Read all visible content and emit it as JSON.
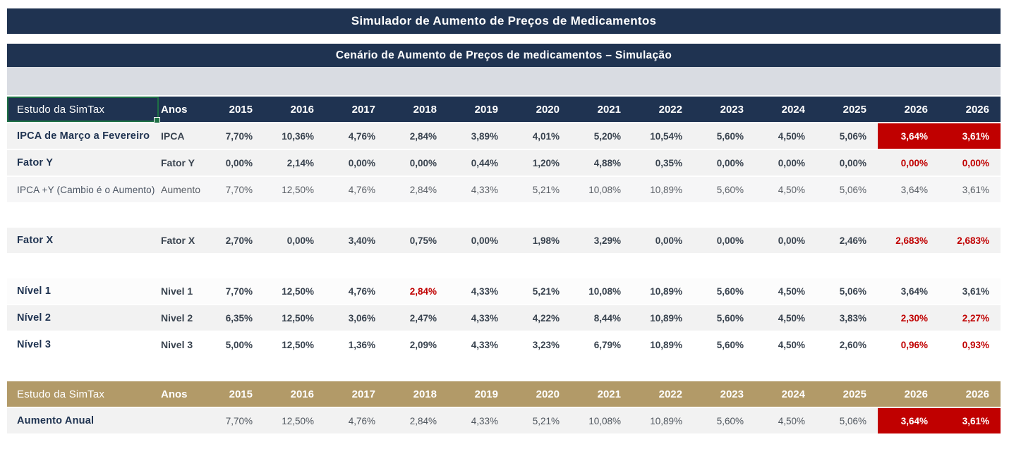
{
  "titles": {
    "main": "Simulador de Aumento de Preços de Medicamentos",
    "subtitle": "Cenário de Aumento de Preços de medicamentos – Simulação"
  },
  "table": {
    "corner_label": "Estudo da SimTax",
    "anos_label": "Anos",
    "years": [
      "2015",
      "2016",
      "2017",
      "2018",
      "2019",
      "2020",
      "2021",
      "2022",
      "2023",
      "2024",
      "2025",
      "2026",
      "2026"
    ]
  },
  "rows": {
    "ipca": {
      "id": "ipca",
      "label": "IPCA de Março a Fevereiro",
      "key": "IPCA",
      "values": [
        "7,70%",
        "10,36%",
        "4,76%",
        "2,84%",
        "3,89%",
        "4,01%",
        "5,20%",
        "10,54%",
        "5,60%",
        "4,50%",
        "5,06%",
        "3,64%",
        "3,61%"
      ],
      "flags": {
        "11": "hl-bg",
        "12": "hl-bg"
      }
    },
    "fator_y": {
      "id": "fator-y",
      "label": "Fator Y",
      "key": "Fator Y",
      "values": [
        "0,00%",
        "2,14%",
        "0,00%",
        "0,00%",
        "0,44%",
        "1,20%",
        "4,88%",
        "0,35%",
        "0,00%",
        "0,00%",
        "0,00%",
        "0,00%",
        "0,00%"
      ],
      "flags": {
        "11": "hl-txt",
        "12": "hl-txt"
      }
    },
    "aumento": {
      "id": "aumento",
      "label": "IPCA +Y (Cambio é o Aumento)",
      "key": "Aumento",
      "values": [
        "7,70%",
        "12,50%",
        "4,76%",
        "2,84%",
        "4,33%",
        "5,21%",
        "10,08%",
        "10,89%",
        "5,60%",
        "4,50%",
        "5,06%",
        "3,64%",
        "3,61%"
      ],
      "flags": {}
    },
    "fator_x": {
      "id": "fator-x",
      "label": "Fator X",
      "key": "Fator X",
      "values": [
        "2,70%",
        "0,00%",
        "3,40%",
        "0,75%",
        "0,00%",
        "1,98%",
        "3,29%",
        "0,00%",
        "0,00%",
        "0,00%",
        "2,46%",
        "2,683%",
        "2,683%"
      ],
      "flags": {
        "11": "hl-txt",
        "12": "hl-txt"
      }
    },
    "nivel1": {
      "id": "nivel-1",
      "label": "Nível 1",
      "key": "Nivel 1",
      "values": [
        "7,70%",
        "12,50%",
        "4,76%",
        "2,84%",
        "4,33%",
        "5,21%",
        "10,08%",
        "10,89%",
        "5,60%",
        "4,50%",
        "5,06%",
        "3,64%",
        "3,61%"
      ],
      "flags": {
        "3": "hl-txt"
      }
    },
    "nivel2": {
      "id": "nivel-2",
      "label": "Nível 2",
      "key": "Nivel 2",
      "values": [
        "6,35%",
        "12,50%",
        "3,06%",
        "2,47%",
        "4,33%",
        "4,22%",
        "8,44%",
        "10,89%",
        "5,60%",
        "4,50%",
        "3,83%",
        "2,30%",
        "2,27%"
      ],
      "flags": {
        "11": "hl-txt",
        "12": "hl-txt"
      }
    },
    "nivel3": {
      "id": "nivel-3",
      "label": "Nível 3",
      "key": "Nivel 3",
      "values": [
        "5,00%",
        "12,50%",
        "1,36%",
        "2,09%",
        "4,33%",
        "3,23%",
        "6,79%",
        "10,89%",
        "5,60%",
        "4,50%",
        "2,60%",
        "0,96%",
        "0,93%"
      ],
      "flags": {
        "11": "hl-txt",
        "12": "hl-txt"
      }
    },
    "aumento_anual": {
      "id": "aumento-anual",
      "label": "Aumento Anual",
      "key": "",
      "values": [
        "7,70%",
        "12,50%",
        "4,76%",
        "2,84%",
        "4,33%",
        "5,21%",
        "10,08%",
        "10,89%",
        "5,60%",
        "4,50%",
        "5,06%",
        "3,64%",
        "3,61%"
      ],
      "flags": {
        "11": "hl-bg",
        "12": "hl-bg"
      }
    }
  },
  "bottom": {
    "corner_label": "Estudo da SimTax",
    "anos_label": "Anos"
  },
  "colors": {
    "navy": "#1F3351",
    "gold": "#B29A68",
    "alert_red": "#C00000",
    "selection_green": "#1E7145",
    "band_gray": "#D9DCE2",
    "row_gray": "#F2F2F2"
  }
}
